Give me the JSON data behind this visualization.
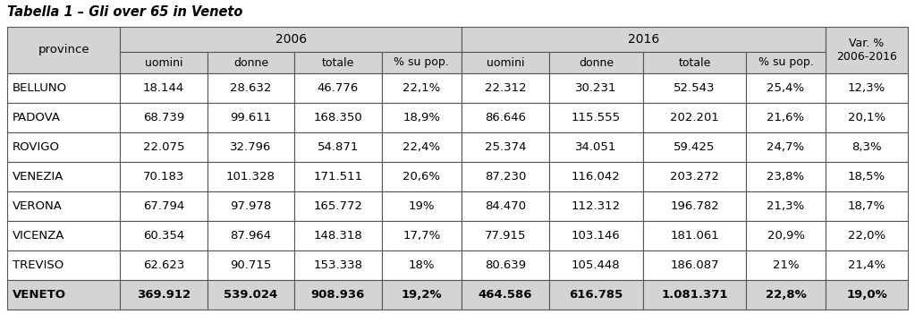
{
  "title": "Tabella 1 – Gli over 65 in Veneto",
  "province_header": "province",
  "year_headers": [
    "2006",
    "2016"
  ],
  "sub_headers": [
    "uomini",
    "donne",
    "totale",
    "% su pop.",
    "uomini",
    "donne",
    "totale",
    "% su pop."
  ],
  "var_header_line1": "Var. %",
  "var_header_line2": "2006-2016",
  "rows": [
    [
      "BELLUNO",
      "18.144",
      "28.632",
      "46.776",
      "22,1%",
      "22.312",
      "30.231",
      "52.543",
      "25,4%",
      "12,3%"
    ],
    [
      "PADOVA",
      "68.739",
      "99.611",
      "168.350",
      "18,9%",
      "86.646",
      "115.555",
      "202.201",
      "21,6%",
      "20,1%"
    ],
    [
      "ROVIGO",
      "22.075",
      "32.796",
      "54.871",
      "22,4%",
      "25.374",
      "34.051",
      "59.425",
      "24,7%",
      "8,3%"
    ],
    [
      "VENEZIA",
      "70.183",
      "101.328",
      "171.511",
      "20,6%",
      "87.230",
      "116.042",
      "203.272",
      "23,8%",
      "18,5%"
    ],
    [
      "VERONA",
      "67.794",
      "97.978",
      "165.772",
      "19%",
      "84.470",
      "112.312",
      "196.782",
      "21,3%",
      "18,7%"
    ],
    [
      "VICENZA",
      "60.354",
      "87.964",
      "148.318",
      "17,7%",
      "77.915",
      "103.146",
      "181.061",
      "20,9%",
      "22,0%"
    ],
    [
      "TREVISO",
      "62.623",
      "90.715",
      "153.338",
      "18%",
      "80.639",
      "105.448",
      "186.087",
      "21%",
      "21,4%"
    ]
  ],
  "total_row": [
    "VENETO",
    "369.912",
    "539.024",
    "908.936",
    "19,2%",
    "464.586",
    "616.785",
    "1.081.371",
    "22,8%",
    "19,0%"
  ],
  "header_bg": "#d4d4d4",
  "data_bg": "#ffffff",
  "total_bg": "#d4d4d4",
  "border_color": "#555555",
  "text_color": "#000000",
  "figsize": [
    10.23,
    3.51
  ],
  "dpi": 100
}
